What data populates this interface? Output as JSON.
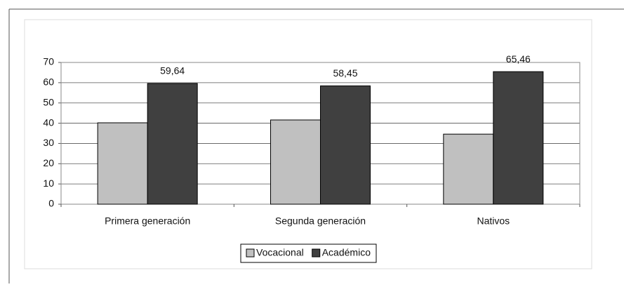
{
  "chart_data": {
    "type": "bar",
    "categories": [
      "Primera generación",
      "Segunda generación",
      "Nativos"
    ],
    "series": [
      {
        "name": "Vocacional",
        "color": "#c0c0c0",
        "values": [
          40.2,
          41.6,
          34.6
        ]
      },
      {
        "name": "Académico",
        "color": "#404040",
        "values": [
          59.64,
          58.45,
          65.46
        ],
        "value_labels": [
          "59,64",
          "58,45",
          "65,46"
        ]
      }
    ],
    "ylim": [
      0,
      70
    ],
    "yticks": [
      0,
      10,
      20,
      30,
      40,
      50,
      60,
      70
    ],
    "grid": true,
    "legend": "bottom"
  }
}
